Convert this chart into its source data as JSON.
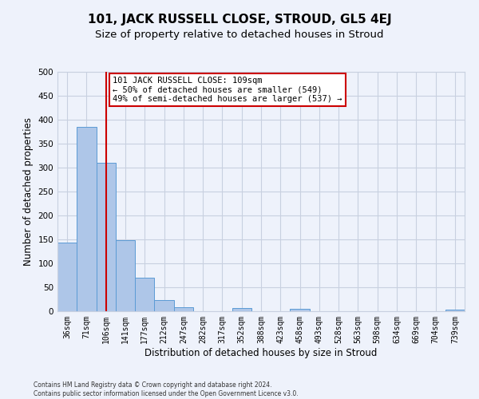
{
  "title": "101, JACK RUSSELL CLOSE, STROUD, GL5 4EJ",
  "subtitle": "Size of property relative to detached houses in Stroud",
  "xlabel": "Distribution of detached houses by size in Stroud",
  "ylabel": "Number of detached properties",
  "bin_labels": [
    "36sqm",
    "71sqm",
    "106sqm",
    "141sqm",
    "177sqm",
    "212sqm",
    "247sqm",
    "282sqm",
    "317sqm",
    "352sqm",
    "388sqm",
    "423sqm",
    "458sqm",
    "493sqm",
    "528sqm",
    "563sqm",
    "598sqm",
    "634sqm",
    "669sqm",
    "704sqm",
    "739sqm"
  ],
  "bar_values": [
    143,
    385,
    310,
    148,
    70,
    23,
    9,
    0,
    0,
    7,
    0,
    0,
    5,
    0,
    0,
    0,
    0,
    0,
    0,
    0,
    3
  ],
  "bar_color": "#aec6e8",
  "bar_edge_color": "#5b9bd5",
  "bar_edge_width": 0.7,
  "vline_x": 2,
  "vline_color": "#cc0000",
  "annotation_title": "101 JACK RUSSELL CLOSE: 109sqm",
  "annotation_line1": "← 50% of detached houses are smaller (549)",
  "annotation_line2": "49% of semi-detached houses are larger (537) →",
  "annotation_box_color": "#ffffff",
  "annotation_box_edge": "#cc0000",
  "ylim": [
    0,
    500
  ],
  "yticks": [
    0,
    50,
    100,
    150,
    200,
    250,
    300,
    350,
    400,
    450,
    500
  ],
  "footer_line1": "Contains HM Land Registry data © Crown copyright and database right 2024.",
  "footer_line2": "Contains public sector information licensed under the Open Government Licence v3.0.",
  "background_color": "#eef2fb",
  "plot_bg_color": "#eef2fb",
  "grid_color": "#c8d0e0",
  "title_fontsize": 11,
  "subtitle_fontsize": 9.5,
  "axis_label_fontsize": 8.5,
  "tick_fontsize": 7,
  "footer_fontsize": 5.5
}
